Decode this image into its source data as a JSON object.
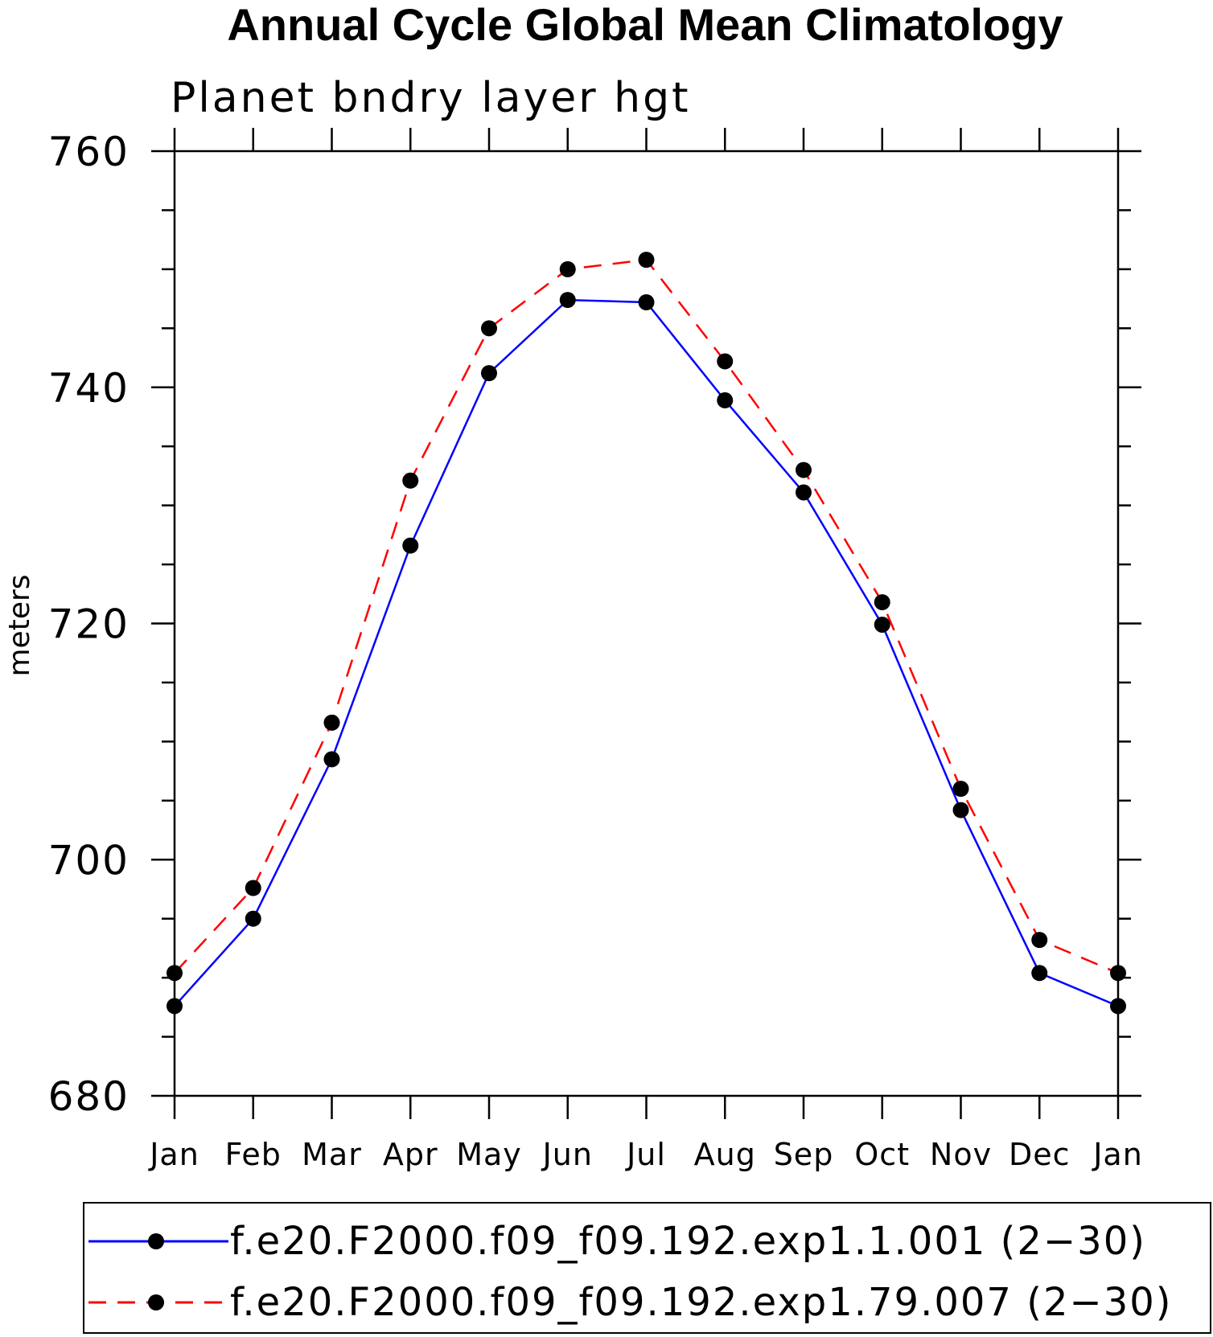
{
  "chart_data": {
    "type": "line",
    "title": "Annual Cycle Global Mean Climatology",
    "subtitle": "Planet bndry layer hgt",
    "ylabel": "meters",
    "xlabel": "",
    "ylim": [
      680,
      760
    ],
    "yticks": [
      680,
      700,
      720,
      740,
      760
    ],
    "categories": [
      "Jan",
      "Feb",
      "Mar",
      "Apr",
      "May",
      "Jun",
      "Jul",
      "Aug",
      "Sep",
      "Oct",
      "Nov",
      "Dec",
      "Jan"
    ],
    "series": [
      {
        "name": "f.e20.F2000.f09_f09.192.exp1.1.001 (2−30)",
        "color": "#0000ff",
        "dash": "solid",
        "marker": "filled-circle",
        "values": [
          687.6,
          695.0,
          708.5,
          726.6,
          741.2,
          747.4,
          747.2,
          738.9,
          731.1,
          719.9,
          704.2,
          690.4,
          687.6
        ]
      },
      {
        "name": "f.e20.F2000.f09_f09.192.exp1.79.007 (2−30)",
        "color": "#ff0000",
        "dash": "dashed",
        "marker": "filled-circle",
        "values": [
          690.4,
          697.6,
          711.6,
          732.1,
          745.0,
          750.0,
          750.8,
          742.2,
          733.0,
          721.8,
          706.0,
          693.2,
          690.4
        ]
      }
    ],
    "legend_position": "bottom",
    "grid": false
  }
}
